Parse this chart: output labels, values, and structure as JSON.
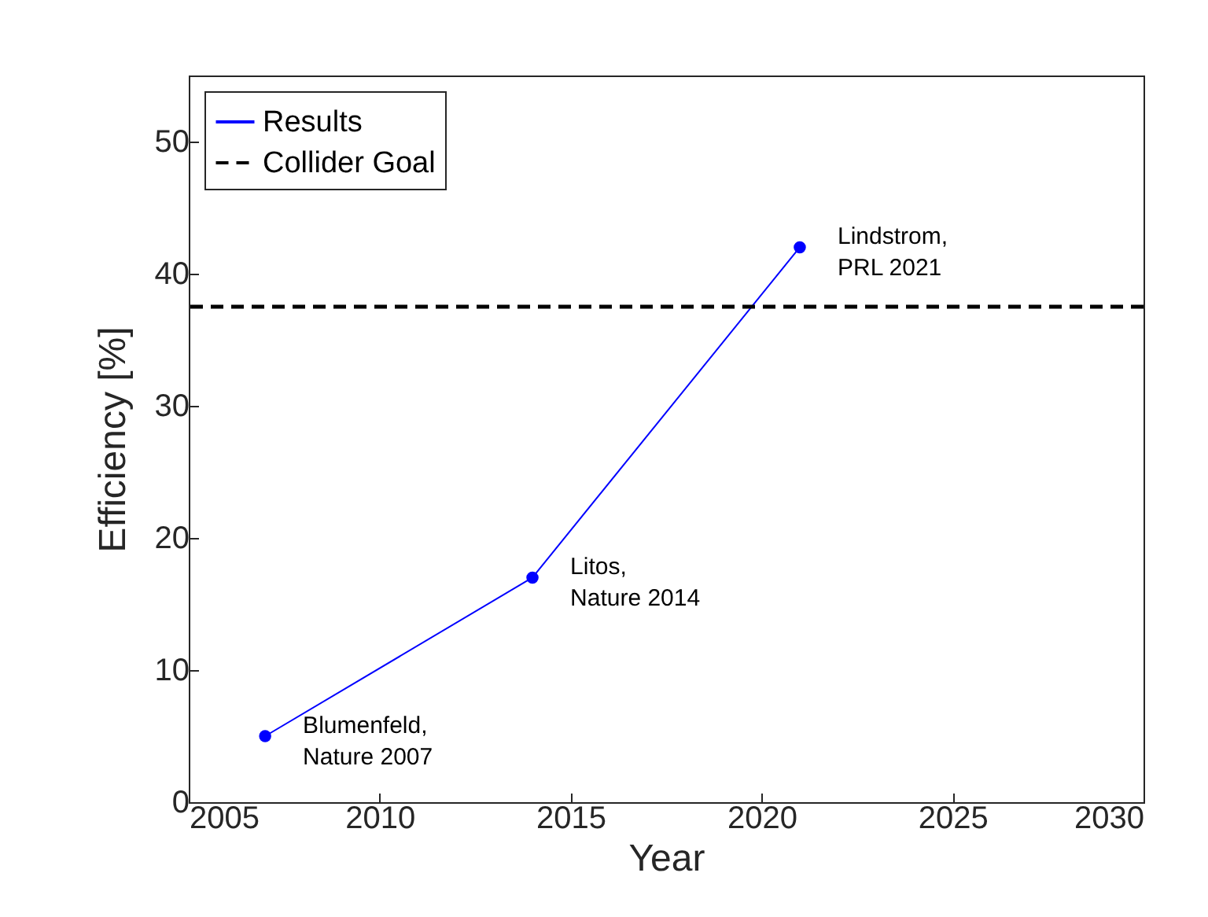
{
  "chart_data": {
    "type": "line",
    "xlabel": "Year",
    "ylabel": "Efficiency [%]",
    "x": [
      2007,
      2014,
      2021
    ],
    "series": [
      {
        "name": "Results",
        "color": "#0000ff",
        "values": [
          5,
          17,
          42
        ]
      }
    ],
    "marker": "circle",
    "legend": "top left",
    "xlim": [
      2005,
      2030
    ],
    "xticks": [
      2005,
      2010,
      2015,
      2020,
      2025,
      2030
    ],
    "ylim": [
      0,
      55
    ],
    "yticks": [
      0,
      10,
      20,
      30,
      40,
      50
    ],
    "ref_lines": [
      {
        "axis": "y",
        "value": 37.5,
        "label": "Collider Goal",
        "color": "#000000",
        "line_style": "dashed"
      }
    ],
    "annotations": [
      {
        "text": "Blumenfeld,\n Nature 2007",
        "x": 2007,
        "y": 5
      },
      {
        "text": "Litos,\n Nature 2014",
        "x": 2014,
        "y": 17
      },
      {
        "text": "Lindstrom,\n PRL 2021",
        "x": 2021,
        "y": 42
      }
    ]
  }
}
